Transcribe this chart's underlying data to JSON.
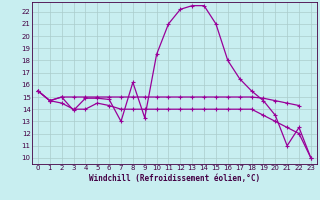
{
  "title": "",
  "xlabel": "Windchill (Refroidissement éolien,°C)",
  "bg_color": "#c8eef0",
  "line_color": "#990099",
  "grid_color": "#aacccc",
  "xlim": [
    -0.5,
    23.5
  ],
  "ylim": [
    9.5,
    22.8
  ],
  "xticks": [
    0,
    1,
    2,
    3,
    4,
    5,
    6,
    7,
    8,
    9,
    10,
    11,
    12,
    13,
    14,
    15,
    16,
    17,
    18,
    19,
    20,
    21,
    22,
    23
  ],
  "yticks": [
    10,
    11,
    12,
    13,
    14,
    15,
    16,
    17,
    18,
    19,
    20,
    21,
    22
  ],
  "series1_x": [
    0,
    1,
    2,
    3,
    4,
    5,
    6,
    7,
    8,
    9,
    10,
    11,
    12,
    13,
    14,
    15,
    16,
    17,
    18,
    19,
    20,
    21,
    22,
    23
  ],
  "series1_y": [
    15.5,
    14.7,
    15.0,
    13.9,
    14.9,
    14.9,
    14.8,
    13.0,
    16.2,
    13.3,
    18.5,
    21.0,
    22.2,
    22.5,
    22.5,
    21.0,
    18.0,
    16.5,
    15.5,
    14.7,
    13.5,
    11.0,
    12.5,
    10.0
  ],
  "series2_x": [
    0,
    1,
    2,
    3,
    4,
    5,
    6,
    7,
    8,
    9,
    10,
    11,
    12,
    13,
    14,
    15,
    16,
    17,
    18,
    19,
    20,
    21,
    22
  ],
  "series2_y": [
    15.5,
    14.7,
    15.0,
    15.0,
    15.0,
    15.0,
    15.0,
    15.0,
    15.0,
    15.0,
    15.0,
    15.0,
    15.0,
    15.0,
    15.0,
    15.0,
    15.0,
    15.0,
    15.0,
    14.9,
    14.7,
    14.5,
    14.3
  ],
  "series3_x": [
    0,
    1,
    2,
    3,
    4,
    5,
    6,
    7,
    8,
    9,
    10,
    11,
    12,
    13,
    14,
    15,
    16,
    17,
    18,
    19,
    20,
    21,
    22,
    23
  ],
  "series3_y": [
    15.5,
    14.7,
    14.5,
    14.0,
    14.0,
    14.5,
    14.3,
    14.0,
    14.0,
    14.0,
    14.0,
    14.0,
    14.0,
    14.0,
    14.0,
    14.0,
    14.0,
    14.0,
    14.0,
    13.5,
    13.0,
    12.5,
    12.0,
    10.0
  ]
}
